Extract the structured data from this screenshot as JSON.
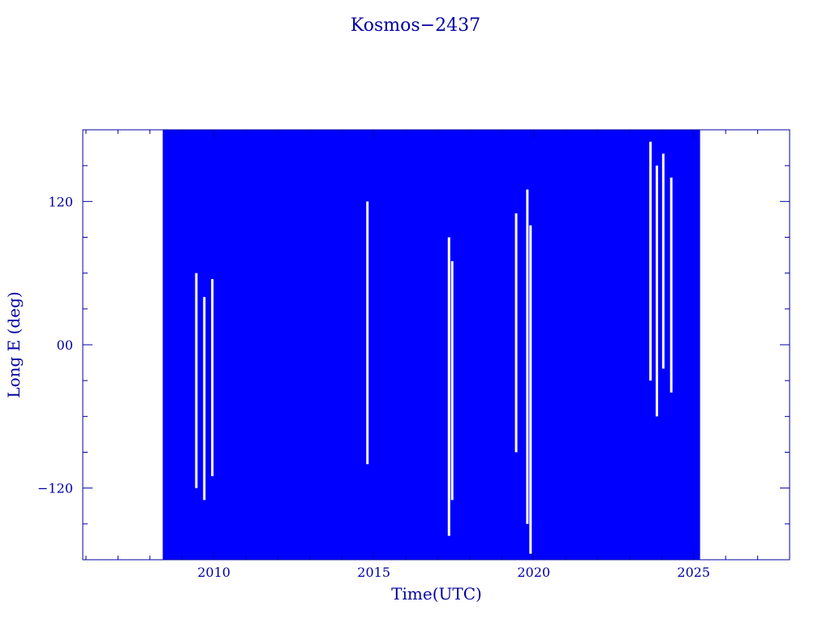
{
  "chart_data": {
    "type": "scatter",
    "title": "Kosmos−2437",
    "xlabel": "Time(UTC)",
    "ylabel": "Long E (deg)",
    "xlim": [
      2005.9,
      2028.0
    ],
    "ylim": [
      -180,
      180
    ],
    "x_ticks": [
      2010,
      2015,
      2020,
      2025
    ],
    "x_tick_labels": [
      "2010",
      "2015",
      "2020",
      "2025"
    ],
    "y_ticks": [
      -120,
      0,
      120
    ],
    "y_tick_labels": [
      "−120",
      "00",
      "120"
    ],
    "data_start": 2008.4,
    "data_end": 2025.2,
    "series_color": "#0000ff",
    "axis_color": "#0000a0",
    "gaps": [
      {
        "x": 2009.45,
        "y": [
          -120,
          60
        ]
      },
      {
        "x": 2009.7,
        "y": [
          -130,
          40
        ]
      },
      {
        "x": 2009.95,
        "y": [
          -110,
          55
        ]
      },
      {
        "x": 2014.8,
        "y": [
          -100,
          120
        ]
      },
      {
        "x": 2017.35,
        "y": [
          -160,
          90
        ]
      },
      {
        "x": 2017.45,
        "y": [
          -130,
          70
        ]
      },
      {
        "x": 2019.45,
        "y": [
          -90,
          110
        ]
      },
      {
        "x": 2019.8,
        "y": [
          -150,
          130
        ]
      },
      {
        "x": 2019.9,
        "y": [
          -175,
          100
        ]
      },
      {
        "x": 2023.65,
        "y": [
          -30,
          170
        ]
      },
      {
        "x": 2023.85,
        "y": [
          -60,
          150
        ]
      },
      {
        "x": 2024.05,
        "y": [
          -20,
          160
        ]
      },
      {
        "x": 2024.3,
        "y": [
          -40,
          140
        ]
      }
    ]
  }
}
